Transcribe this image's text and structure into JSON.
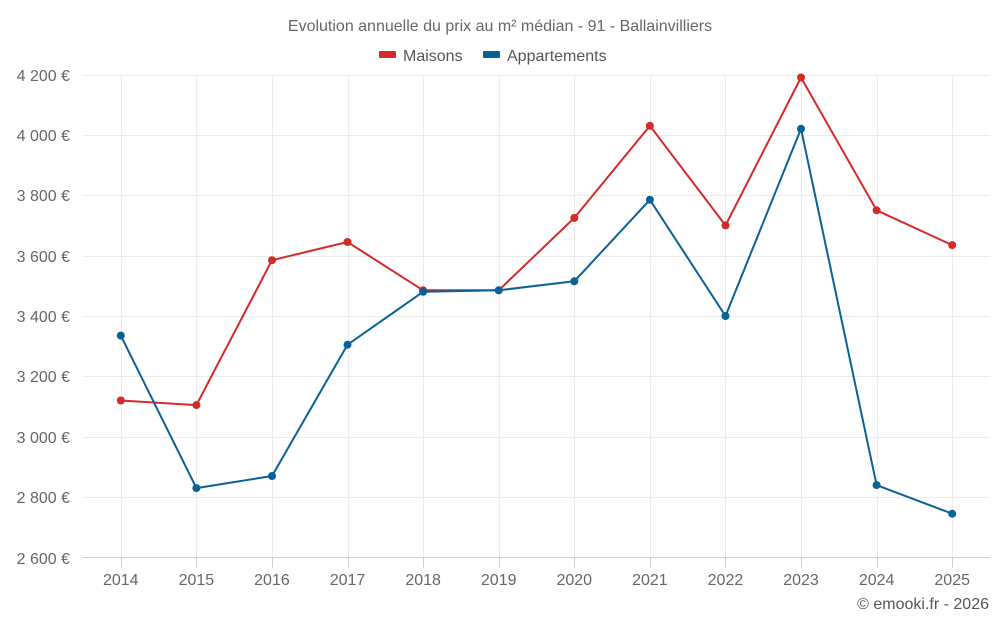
{
  "chart_data": {
    "type": "line",
    "title": "Evolution annuelle du prix au m² médian - 91 - Ballainvilliers",
    "xlabel": "",
    "ylabel": "",
    "categories": [
      "2014",
      "2015",
      "2016",
      "2017",
      "2018",
      "2019",
      "2020",
      "2021",
      "2022",
      "2023",
      "2024",
      "2025"
    ],
    "ylim": [
      2600,
      4200
    ],
    "y_ticks": [
      2600,
      2800,
      3000,
      3200,
      3400,
      3600,
      3800,
      4000,
      4200
    ],
    "y_tick_labels": [
      "2 600 €",
      "2 800 €",
      "3 000 €",
      "3 200 €",
      "3 400 €",
      "3 600 €",
      "3 800 €",
      "4 000 €",
      "4 200 €"
    ],
    "grid": true,
    "legend_position": "top-center",
    "series": [
      {
        "name": "Maisons",
        "color": "#d42a2a",
        "values": [
          3120,
          3105,
          3585,
          3645,
          3485,
          3485,
          3725,
          4030,
          3700,
          4190,
          3750,
          3635
        ]
      },
      {
        "name": "Appartements",
        "color": "#0a6195",
        "values": [
          3335,
          2830,
          2870,
          3305,
          3480,
          3485,
          3515,
          3785,
          3400,
          4020,
          2840,
          2745
        ]
      }
    ],
    "credit": "© emooki.fr - 2026"
  }
}
